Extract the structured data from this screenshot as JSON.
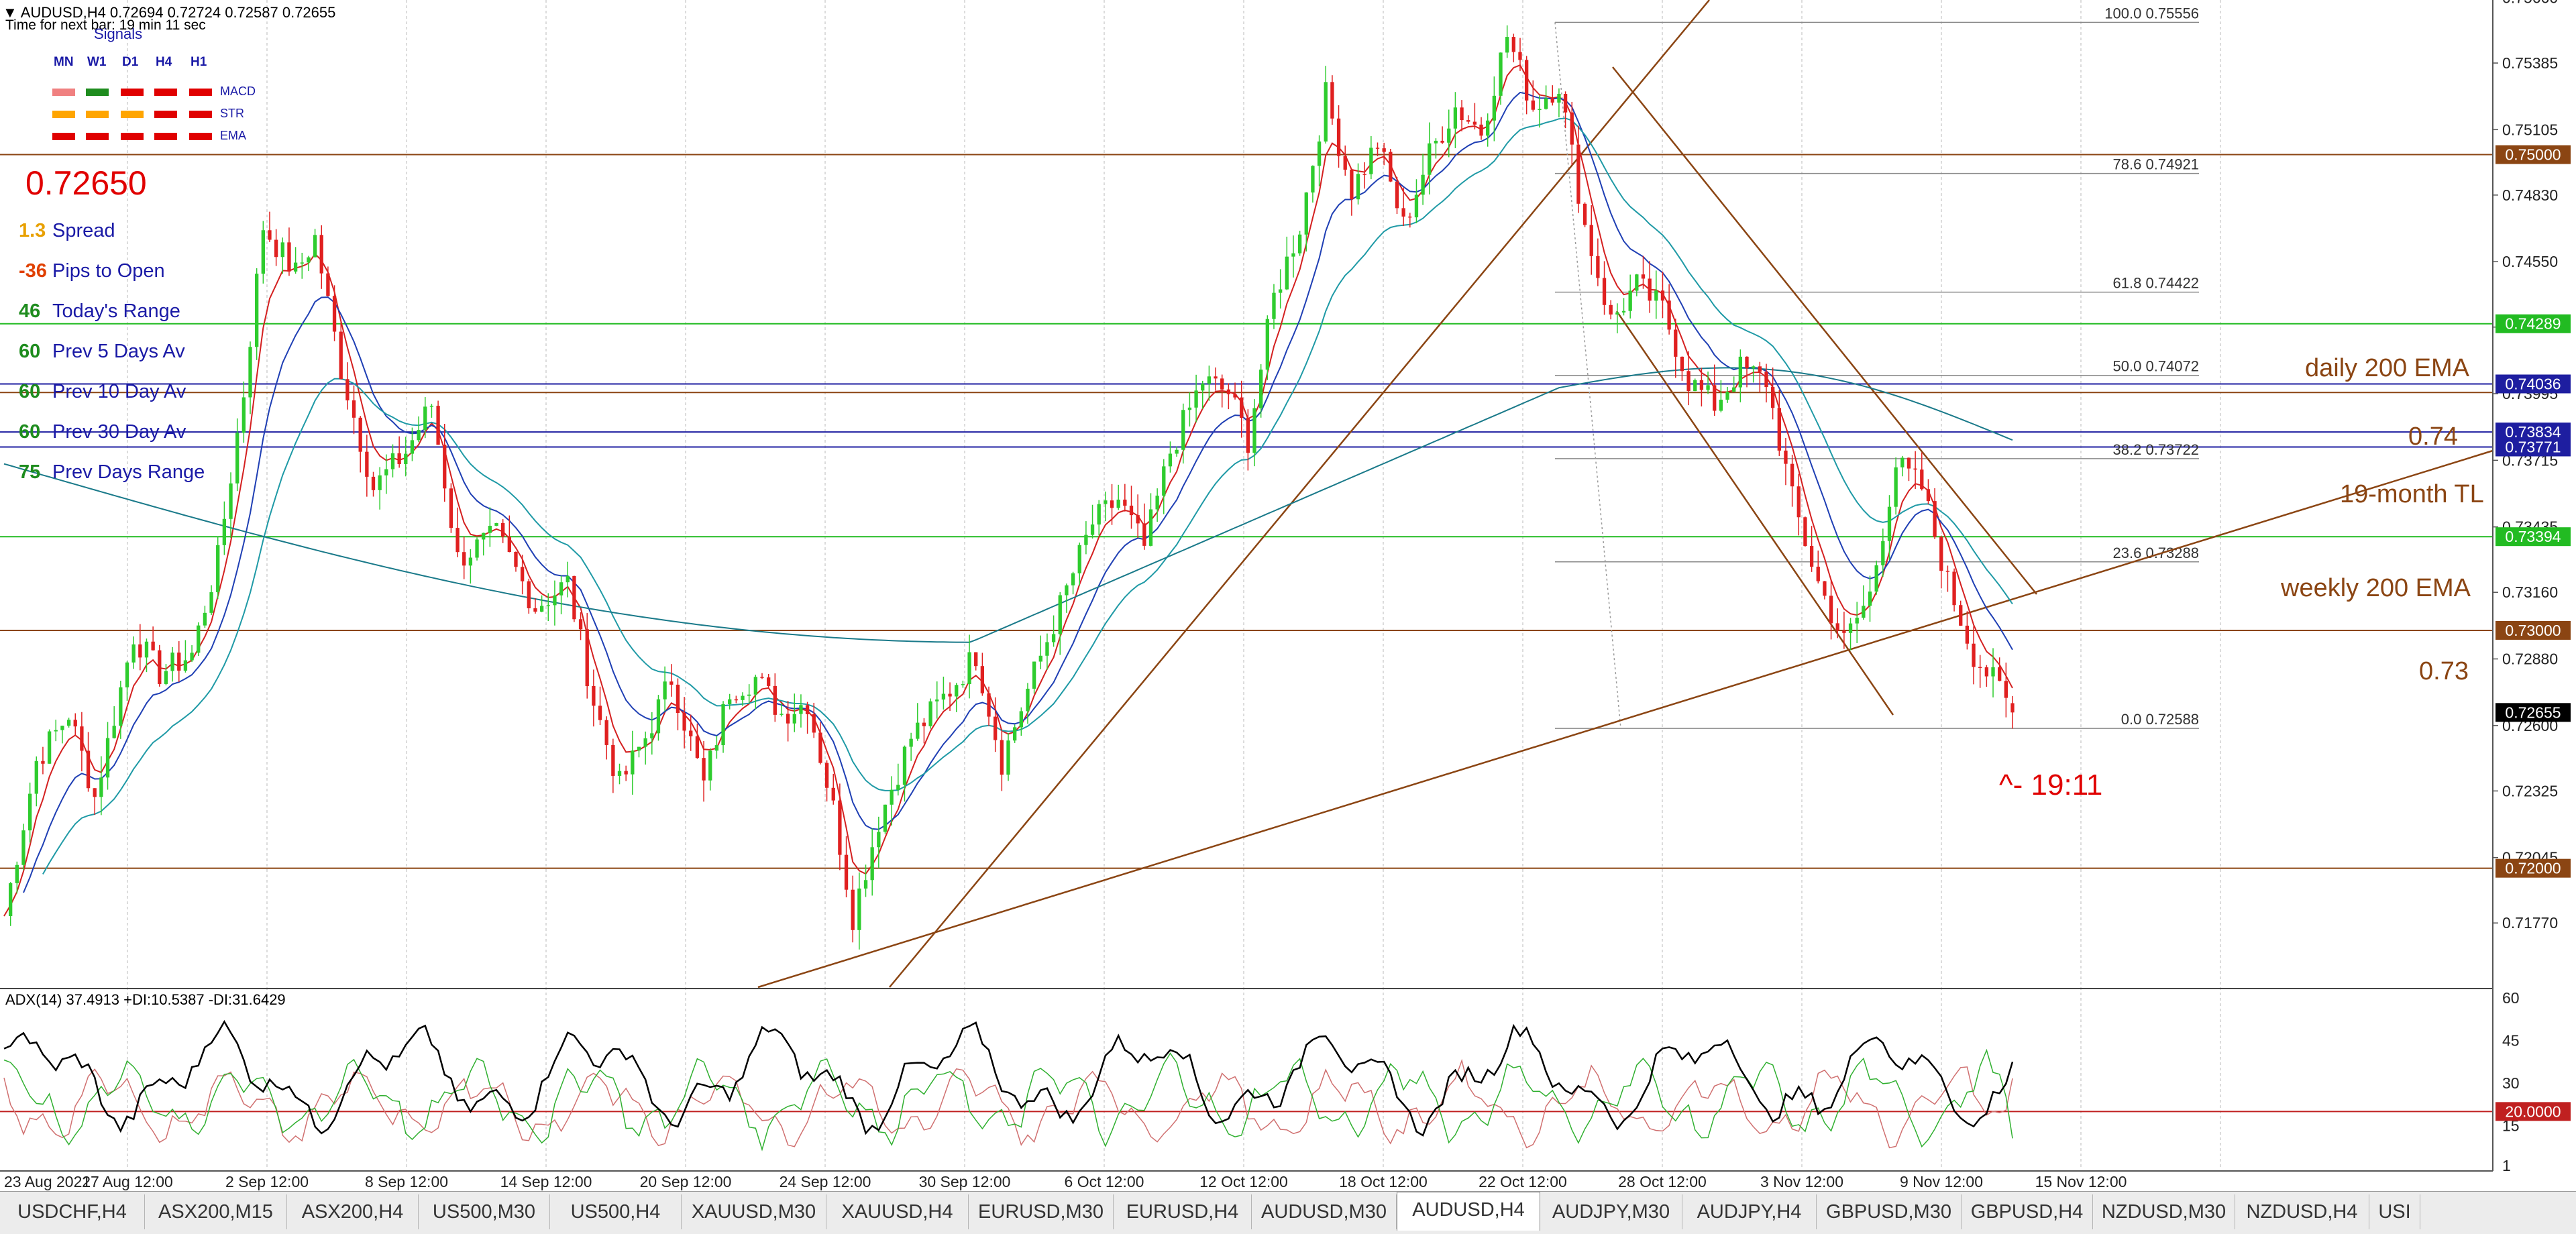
{
  "header": {
    "symbol_line": "AUDUSD,H4  0.72694 0.72724 0.72587 0.72655",
    "timer": "Time for next bar: 19 min 11 sec",
    "signals_title": "Signals"
  },
  "signals": {
    "timeframes": [
      "MN",
      "W1",
      "D1",
      "H4",
      "H1"
    ],
    "rows": [
      {
        "name": "MACD",
        "colors": [
          "#f08080",
          "#1e8c1e",
          "#e00000",
          "#e00000",
          "#e00000"
        ]
      },
      {
        "name": "STR",
        "colors": [
          "#ffa500",
          "#ffa500",
          "#ffa500",
          "#e00000",
          "#e00000"
        ]
      },
      {
        "name": "EMA",
        "colors": [
          "#e00000",
          "#e00000",
          "#e00000",
          "#e00000",
          "#e00000"
        ]
      }
    ]
  },
  "big_price": "0.72650",
  "info": [
    {
      "value": "1.3",
      "label": "Spread",
      "color": "#e8a000"
    },
    {
      "value": "-36",
      "label": "Pips to Open",
      "color": "#e04000"
    },
    {
      "value": "46",
      "label": "Today's Range",
      "color": "#1e8c1e"
    },
    {
      "value": "60",
      "label": "Prev 5 Days Av",
      "color": "#1e8c1e"
    },
    {
      "value": "60",
      "label": "Prev 10 Day Av",
      "color": "#1e8c1e"
    },
    {
      "value": "60",
      "label": "Prev 30 Day Av",
      "color": "#1e8c1e"
    },
    {
      "value": "75",
      "label": "Prev Days Range",
      "color": "#1e8c1e"
    }
  ],
  "annotations": {
    "daily_ema": "daily 200 EMA",
    "level_074": "0.74",
    "month_tl": "19-month TL",
    "weekly_ema": "weekly 200 EMA",
    "level_073": "0.73",
    "timer_marker": "^- 19:11"
  },
  "chart_data": {
    "type": "candlestick",
    "symbol": "AUDUSD",
    "timeframe": "H4",
    "last_bar": {
      "open": 0.72694,
      "high": 0.72724,
      "low": 0.72587,
      "close": 0.72655
    },
    "ylim": [
      0.715,
      0.7565
    ],
    "y_ticks": [
      "0.75660",
      "0.75385",
      "0.75105",
      "0.74830",
      "0.74550",
      "0.74275",
      "0.73995",
      "0.73715",
      "0.73435",
      "0.73160",
      "0.72880",
      "0.72600",
      "0.72325",
      "0.72045",
      "0.71770"
    ],
    "x_ticks": [
      "23 Aug 2021",
      "27 Aug 12:00",
      "2 Sep 12:00",
      "8 Sep 12:00",
      "14 Sep 12:00",
      "20 Sep 12:00",
      "24 Sep 12:00",
      "30 Sep 12:00",
      "6 Oct 12:00",
      "12 Oct 12:00",
      "18 Oct 12:00",
      "22 Oct 12:00",
      "28 Oct 12:00",
      "3 Nov 12:00",
      "9 Nov 12:00",
      "15 Nov 12:00"
    ],
    "price_path": [
      [
        0,
        0.718
      ],
      [
        5,
        0.7245
      ],
      [
        10,
        0.7265
      ],
      [
        14,
        0.723
      ],
      [
        20,
        0.7298
      ],
      [
        24,
        0.7282
      ],
      [
        29,
        0.729
      ],
      [
        33,
        0.733
      ],
      [
        37,
        0.74
      ],
      [
        40,
        0.747
      ],
      [
        45,
        0.745
      ],
      [
        48,
        0.7465
      ],
      [
        52,
        0.741
      ],
      [
        57,
        0.736
      ],
      [
        62,
        0.7375
      ],
      [
        66,
        0.7395
      ],
      [
        70,
        0.733
      ],
      [
        76,
        0.734
      ],
      [
        82,
        0.731
      ],
      [
        87,
        0.732
      ],
      [
        91,
        0.727
      ],
      [
        95,
        0.7235
      ],
      [
        99,
        0.7255
      ],
      [
        103,
        0.728
      ],
      [
        108,
        0.7235
      ],
      [
        112,
        0.7275
      ],
      [
        116,
        0.728
      ],
      [
        120,
        0.7265
      ],
      [
        124,
        0.727
      ],
      [
        128,
        0.7225
      ],
      [
        131,
        0.718
      ],
      [
        135,
        0.722
      ],
      [
        140,
        0.7255
      ],
      [
        146,
        0.7275
      ],
      [
        150,
        0.729
      ],
      [
        154,
        0.7245
      ],
      [
        158,
        0.7275
      ],
      [
        163,
        0.731
      ],
      [
        168,
        0.7345
      ],
      [
        172,
        0.7355
      ],
      [
        176,
        0.7335
      ],
      [
        180,
        0.7375
      ],
      [
        185,
        0.7405
      ],
      [
        189,
        0.74
      ],
      [
        192,
        0.738
      ],
      [
        196,
        0.744
      ],
      [
        200,
        0.747
      ],
      [
        204,
        0.7525
      ],
      [
        208,
        0.7485
      ],
      [
        212,
        0.7505
      ],
      [
        216,
        0.747
      ],
      [
        220,
        0.75
      ],
      [
        224,
        0.752
      ],
      [
        228,
        0.751
      ],
      [
        232,
        0.755
      ],
      [
        236,
        0.752
      ],
      [
        240,
        0.753
      ],
      [
        244,
        0.747
      ],
      [
        248,
        0.743
      ],
      [
        252,
        0.7445
      ],
      [
        256,
        0.7435
      ],
      [
        260,
        0.7405
      ],
      [
        264,
        0.7395
      ],
      [
        268,
        0.741
      ],
      [
        272,
        0.7405
      ],
      [
        276,
        0.7355
      ],
      [
        280,
        0.732
      ],
      [
        284,
        0.7295
      ],
      [
        288,
        0.7315
      ],
      [
        292,
        0.737
      ],
      [
        296,
        0.736
      ],
      [
        300,
        0.732
      ],
      [
        304,
        0.729
      ],
      [
        308,
        0.7275
      ],
      [
        310,
        0.72655
      ]
    ],
    "horizontal_levels": [
      {
        "name": "daily 200 EMA",
        "value": 0.74289,
        "color": "#22bb22"
      },
      {
        "name": "level",
        "value": 0.74036,
        "color": "#1e1ea0"
      },
      {
        "name": "0.74",
        "value": 0.74,
        "color": "#8b4513"
      },
      {
        "name": "level",
        "value": 0.73834,
        "color": "#1e1ea0"
      },
      {
        "name": "level",
        "value": 0.73771,
        "color": "#1e1ea0"
      },
      {
        "name": "weekly 200 EMA",
        "value": 0.73394,
        "color": "#22bb22"
      },
      {
        "name": "0.75",
        "value": 0.75,
        "color": "#8b4513"
      },
      {
        "name": "0.73",
        "value": 0.73,
        "color": "#8b4513"
      },
      {
        "name": "0.72",
        "value": 0.72,
        "color": "#8b4513"
      }
    ],
    "price_labels": [
      {
        "text": "0.75000",
        "value": 0.75,
        "bg": "#8b4513",
        "fg": "#ffffff"
      },
      {
        "text": "0.74289",
        "value": 0.74289,
        "bg": "#22bb22",
        "fg": "#ffffff"
      },
      {
        "text": "0.74036",
        "value": 0.74036,
        "bg": "#1e1ea0",
        "fg": "#ffffff"
      },
      {
        "text": "0.73834",
        "value": 0.73834,
        "bg": "#1e1ea0",
        "fg": "#ffffff"
      },
      {
        "text": "0.73771",
        "value": 0.73771,
        "bg": "#1e1ea0",
        "fg": "#ffffff"
      },
      {
        "text": "0.73394",
        "value": 0.73394,
        "bg": "#22bb22",
        "fg": "#ffffff"
      },
      {
        "text": "0.73000",
        "value": 0.73,
        "bg": "#8b4513",
        "fg": "#ffffff"
      },
      {
        "text": "0.72655",
        "value": 0.72655,
        "bg": "#000000",
        "fg": "#ffffff"
      },
      {
        "text": "0.72000",
        "value": 0.72,
        "bg": "#8b4513",
        "fg": "#ffffff"
      }
    ],
    "fibonacci": [
      {
        "ratio": "100.0",
        "value": 0.75556
      },
      {
        "ratio": "78.6",
        "value": 0.74921
      },
      {
        "ratio": "61.8",
        "value": 0.74422
      },
      {
        "ratio": "50.0",
        "value": 0.74072
      },
      {
        "ratio": "38.2",
        "value": 0.73722
      },
      {
        "ratio": "23.6",
        "value": 0.73288
      },
      {
        "ratio": "0.0",
        "value": 0.72588
      }
    ],
    "adx": {
      "title": "ADX(14) 37.4913 +DI:10.5387 -DI:31.6429",
      "adx": 37.4913,
      "plus_di": 10.5387,
      "minus_di": 31.6429,
      "ylim": [
        0,
        60
      ],
      "y_ticks": [
        "60",
        "45",
        "30",
        "15",
        "1"
      ],
      "level": {
        "text": "20.0000",
        "value": 20
      }
    }
  },
  "tabs": [
    {
      "label": "USDCHF,H4",
      "active": false
    },
    {
      "label": "ASX200,M15",
      "active": false
    },
    {
      "label": "ASX200,H4",
      "active": false
    },
    {
      "label": "US500,M30",
      "active": false
    },
    {
      "label": "US500,H4",
      "active": false
    },
    {
      "label": "XAUUSD,M30",
      "active": false
    },
    {
      "label": "XAUUSD,H4",
      "active": false
    },
    {
      "label": "EURUSD,M30",
      "active": false
    },
    {
      "label": "EURUSD,H4",
      "active": false
    },
    {
      "label": "AUDUSD,M30",
      "active": false
    },
    {
      "label": "AUDUSD,H4",
      "active": true
    },
    {
      "label": "AUDJPY,M30",
      "active": false
    },
    {
      "label": "AUDJPY,H4",
      "active": false
    },
    {
      "label": "GBPUSD,M30",
      "active": false
    },
    {
      "label": "GBPUSD,H4",
      "active": false
    },
    {
      "label": "NZDUSD,M30",
      "active": false
    },
    {
      "label": "NZDUSD,H4",
      "active": false
    },
    {
      "label": "USI",
      "active": false
    }
  ]
}
